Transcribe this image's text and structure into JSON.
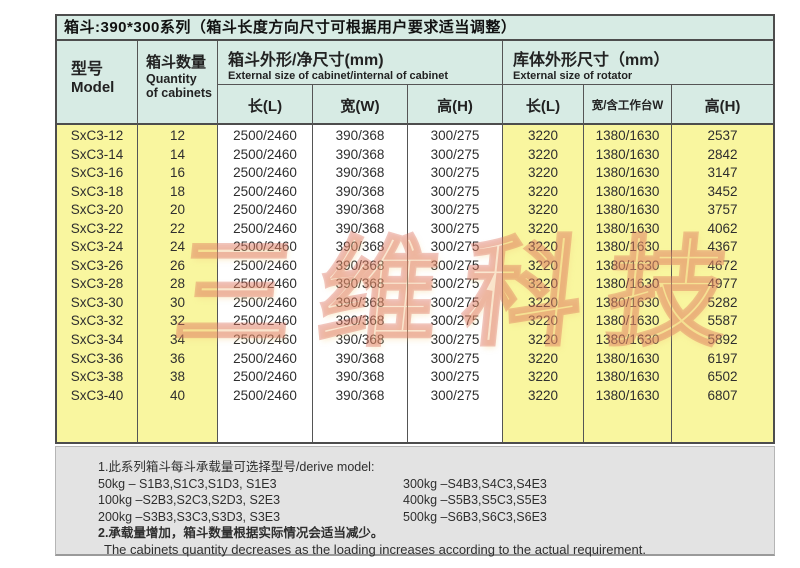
{
  "title": "箱斗:390*300系列（箱斗长度方向尺寸可根据用户要求适当调整）",
  "table": {
    "headers": {
      "model_zh": "型号",
      "model_en": "Model",
      "qty_zh": "箱斗数量",
      "qty_en1": "Quantity",
      "qty_en2": "of cabinets",
      "cabinet_group_zh": "箱斗外形/净尺寸(mm)",
      "cabinet_group_en": "External size of cabinet/internal of cabinet",
      "rotator_group_zh": "库体外形尺寸（mm）",
      "rotator_group_en": "External size of rotator",
      "cab_len": "长(L)",
      "cab_width": "宽(W)",
      "cab_height": "高(H)",
      "rot_len": "长(L)",
      "rot_width": "宽/含工作台W",
      "rot_height": "高(H)"
    },
    "rows": [
      {
        "model": "SxC3-12",
        "qty": "12",
        "c_len": "2500/2460",
        "c_w": "390/368",
        "c_h": "300/275",
        "r_len": "3220",
        "r_w": "1380/1630",
        "r_h": "2537"
      },
      {
        "model": "SxC3-14",
        "qty": "14",
        "c_len": "2500/2460",
        "c_w": "390/368",
        "c_h": "300/275",
        "r_len": "3220",
        "r_w": "1380/1630",
        "r_h": "2842"
      },
      {
        "model": "SxC3-16",
        "qty": "16",
        "c_len": "2500/2460",
        "c_w": "390/368",
        "c_h": "300/275",
        "r_len": "3220",
        "r_w": "1380/1630",
        "r_h": "3147"
      },
      {
        "model": "SxC3-18",
        "qty": "18",
        "c_len": "2500/2460",
        "c_w": "390/368",
        "c_h": "300/275",
        "r_len": "3220",
        "r_w": "1380/1630",
        "r_h": "3452"
      },
      {
        "model": "SxC3-20",
        "qty": "20",
        "c_len": "2500/2460",
        "c_w": "390/368",
        "c_h": "300/275",
        "r_len": "3220",
        "r_w": "1380/1630",
        "r_h": "3757"
      },
      {
        "model": "SxC3-22",
        "qty": "22",
        "c_len": "2500/2460",
        "c_w": "390/368",
        "c_h": "300/275",
        "r_len": "3220",
        "r_w": "1380/1630",
        "r_h": "4062"
      },
      {
        "model": "SxC3-24",
        "qty": "24",
        "c_len": "2500/2460",
        "c_w": "390/368",
        "c_h": "300/275",
        "r_len": "3220",
        "r_w": "1380/1630",
        "r_h": "4367"
      },
      {
        "model": "SxC3-26",
        "qty": "26",
        "c_len": "2500/2460",
        "c_w": "390/368",
        "c_h": "300/275",
        "r_len": "3220",
        "r_w": "1380/1630",
        "r_h": "4672"
      },
      {
        "model": "SxC3-28",
        "qty": "28",
        "c_len": "2500/2460",
        "c_w": "390/368",
        "c_h": "300/275",
        "r_len": "3220",
        "r_w": "1380/1630",
        "r_h": "4977"
      },
      {
        "model": "SxC3-30",
        "qty": "30",
        "c_len": "2500/2460",
        "c_w": "390/368",
        "c_h": "300/275",
        "r_len": "3220",
        "r_w": "1380/1630",
        "r_h": "5282"
      },
      {
        "model": "SxC3-32",
        "qty": "32",
        "c_len": "2500/2460",
        "c_w": "390/368",
        "c_h": "300/275",
        "r_len": "3220",
        "r_w": "1380/1630",
        "r_h": "5587"
      },
      {
        "model": "SxC3-34",
        "qty": "34",
        "c_len": "2500/2460",
        "c_w": "390/368",
        "c_h": "300/275",
        "r_len": "3220",
        "r_w": "1380/1630",
        "r_h": "5892"
      },
      {
        "model": "SxC3-36",
        "qty": "36",
        "c_len": "2500/2460",
        "c_w": "390/368",
        "c_h": "300/275",
        "r_len": "3220",
        "r_w": "1380/1630",
        "r_h": "6197"
      },
      {
        "model": "SxC3-38",
        "qty": "38",
        "c_len": "2500/2460",
        "c_w": "390/368",
        "c_h": "300/275",
        "r_len": "3220",
        "r_w": "1380/1630",
        "r_h": "6502"
      },
      {
        "model": "SxC3-40",
        "qty": "40",
        "c_len": "2500/2460",
        "c_w": "390/368",
        "c_h": "300/275",
        "r_len": "3220",
        "r_w": "1380/1630",
        "r_h": "6807"
      }
    ]
  },
  "watermark": "三维科技",
  "notes": {
    "line1": "1.此系列箱斗每斗承载量可选择型号/derive model:",
    "left": [
      "50kg – S1B3,S1C3,S1D3, S1E3",
      "100kg –S2B3,S2C3,S2D3, S2E3",
      "200kg –S3B3,S3C3,S3D3, S3E3"
    ],
    "right": [
      "300kg –S4B3,S4C3,S4E3",
      "400kg –S5B3,S5C3,S5E3",
      "500kg –S6B3,S6C3,S6E3"
    ],
    "line2_zh": "2.承载量增加，箱斗数量根据实际情况会适当减少。",
    "line2_en": "The cabinets quantity decreases as the loading increases according to the actual requirement."
  },
  "colors": {
    "header_bg": "#d7ebe4",
    "highlight_bg": "#f9f69f",
    "notes_bg": "#e3e3e3",
    "border": "#4d4d4d",
    "watermark": "#db6858"
  }
}
